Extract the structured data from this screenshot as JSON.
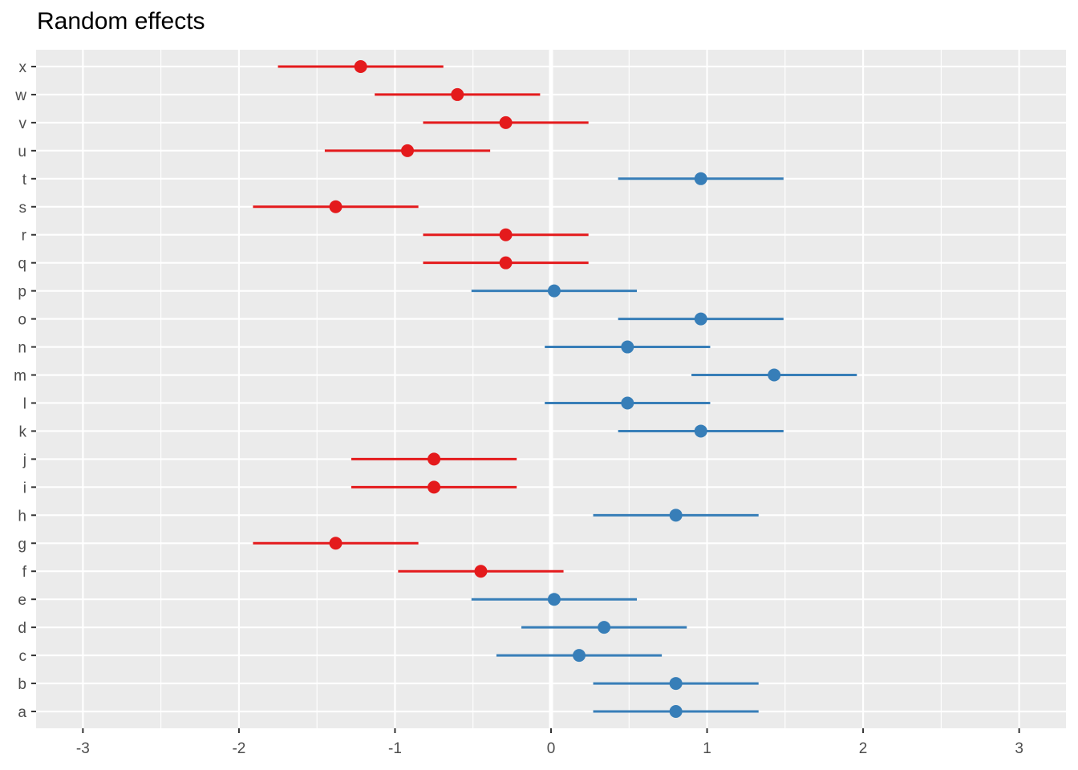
{
  "chart_data": {
    "type": "scatter",
    "subtype": "dot-and-whisker",
    "title": "Random effects",
    "xlabel": "",
    "ylabel": "",
    "xlim": [
      -3.3,
      3.3
    ],
    "xticks": [
      -3,
      -2,
      -1,
      0,
      1,
      2,
      3
    ],
    "xtick_labels": [
      "-3",
      "-2",
      "-1",
      "0",
      "1",
      "2",
      "3"
    ],
    "grid": true,
    "reference_line_x": 0,
    "colors": {
      "negative": "#E41A1C",
      "positive": "#377EB8",
      "panel": "#EBEBEB",
      "grid": "#FFFFFF",
      "text": "#4D4D4D"
    },
    "categories": [
      "a",
      "b",
      "c",
      "d",
      "e",
      "f",
      "g",
      "h",
      "i",
      "j",
      "k",
      "l",
      "m",
      "n",
      "o",
      "p",
      "q",
      "r",
      "s",
      "t",
      "u",
      "v",
      "w",
      "x"
    ],
    "points": [
      {
        "label": "a",
        "estimate": 0.8,
        "lower": 0.27,
        "upper": 1.33,
        "group": "positive"
      },
      {
        "label": "b",
        "estimate": 0.8,
        "lower": 0.27,
        "upper": 1.33,
        "group": "positive"
      },
      {
        "label": "c",
        "estimate": 0.18,
        "lower": -0.35,
        "upper": 0.71,
        "group": "positive"
      },
      {
        "label": "d",
        "estimate": 0.34,
        "lower": -0.19,
        "upper": 0.87,
        "group": "positive"
      },
      {
        "label": "e",
        "estimate": 0.02,
        "lower": -0.51,
        "upper": 0.55,
        "group": "positive"
      },
      {
        "label": "f",
        "estimate": -0.45,
        "lower": -0.98,
        "upper": 0.08,
        "group": "negative"
      },
      {
        "label": "g",
        "estimate": -1.38,
        "lower": -1.91,
        "upper": -0.85,
        "group": "negative"
      },
      {
        "label": "h",
        "estimate": 0.8,
        "lower": 0.27,
        "upper": 1.33,
        "group": "positive"
      },
      {
        "label": "i",
        "estimate": -0.75,
        "lower": -1.28,
        "upper": -0.22,
        "group": "negative"
      },
      {
        "label": "j",
        "estimate": -0.75,
        "lower": -1.28,
        "upper": -0.22,
        "group": "negative"
      },
      {
        "label": "k",
        "estimate": 0.96,
        "lower": 0.43,
        "upper": 1.49,
        "group": "positive"
      },
      {
        "label": "l",
        "estimate": 0.49,
        "lower": -0.04,
        "upper": 1.02,
        "group": "positive"
      },
      {
        "label": "m",
        "estimate": 1.43,
        "lower": 0.9,
        "upper": 1.96,
        "group": "positive"
      },
      {
        "label": "n",
        "estimate": 0.49,
        "lower": -0.04,
        "upper": 1.02,
        "group": "positive"
      },
      {
        "label": "o",
        "estimate": 0.96,
        "lower": 0.43,
        "upper": 1.49,
        "group": "positive"
      },
      {
        "label": "p",
        "estimate": 0.02,
        "lower": -0.51,
        "upper": 0.55,
        "group": "positive"
      },
      {
        "label": "q",
        "estimate": -0.29,
        "lower": -0.82,
        "upper": 0.24,
        "group": "negative"
      },
      {
        "label": "r",
        "estimate": -0.29,
        "lower": -0.82,
        "upper": 0.24,
        "group": "negative"
      },
      {
        "label": "s",
        "estimate": -1.38,
        "lower": -1.91,
        "upper": -0.85,
        "group": "negative"
      },
      {
        "label": "t",
        "estimate": 0.96,
        "lower": 0.43,
        "upper": 1.49,
        "group": "positive"
      },
      {
        "label": "u",
        "estimate": -0.92,
        "lower": -1.45,
        "upper": -0.39,
        "group": "negative"
      },
      {
        "label": "v",
        "estimate": -0.29,
        "lower": -0.82,
        "upper": 0.24,
        "group": "negative"
      },
      {
        "label": "w",
        "estimate": -0.6,
        "lower": -1.13,
        "upper": -0.07,
        "group": "negative"
      },
      {
        "label": "x",
        "estimate": -1.22,
        "lower": -1.75,
        "upper": -0.69,
        "group": "negative"
      }
    ]
  }
}
